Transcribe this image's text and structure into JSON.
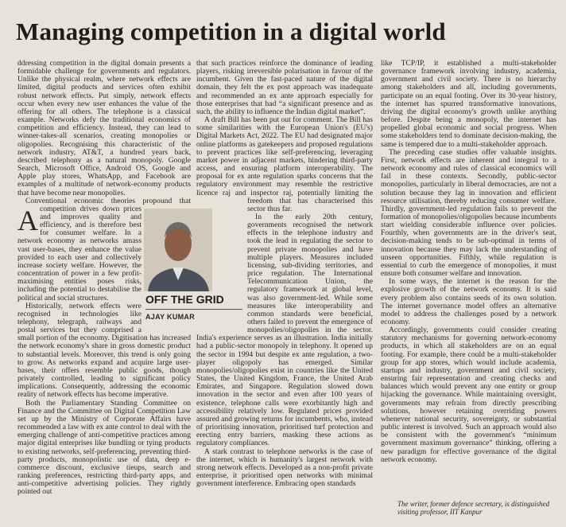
{
  "article": {
    "title": "Managing competition in a digital world",
    "byline": {
      "column": "OFF THE GRID",
      "author": "AJAY KUMAR"
    },
    "columns": [
      [
        "Addressing competition in the digital domain presents a formidable challenge for governments and regulators. Unlike the physical realm, where network effects are limited, digital products and services often exhibit robust network effects. Put simply, network effects occur when every new user enhances the value of the offering for all others. The telephone is a classical example. Networks defy the traditional economics of competition and efficiency. Instead, they can lead to winner-takes-all scenarios, creating monopolies or oligopolies. Recognising this characteristic of the network industry, AT&T, a hundred years back, described telephony as a natural monopoly. Google Search, Microsoft Office, Android OS, Google and Apple play stores, WhatsApp, and Facebook are examples of a multitude of network-economy products that have become near monopolies.",
        "Conventional economic theories propound that competition drives down prices and improves quality and efficiency, and is therefore best for consumer welfare. In a network economy as networks amass vast user-bases, they enhance the value provided to each user and collectively increase society welfare. However, the concentration of power in a few profit-maximising entities poses risks, including the potential to destabilise the political and social structures.",
        "Historically, network effects were recognised in technologies like telephony, telegraph, railways and postal services but they comprised a small portion of the economy. Digitisation has increased the network economy's share in gross domestic product to substantial levels. Moreover, this trend is only going to grow. As networks expand and acquire large user-bases, their offers resemble public goods, though privately controlled, leading to significant policy implications. Consequently, addressing the economic reality of network effects has become imperative.",
        "Both the Parliamentary Standing Committee on Finance and the Committee on Digital Competition Law set up by the Ministry of Corporate Affairs have recommended a law with ex ante control to deal with the emerging challenge of anti-competitive practices among major digital enterprises like bundling or tying products to existing networks, self-preferencing, preventing third-party products, monopolistic use of data, deep e-commerce discount, exclusive tieups, search and ranking preferences, restricting third-party apps, and anti-competitive advertising policies. They rightly pointed out"
      ],
      [
        "that such practices reinforce the dominance of leading players, risking irreversible polarisation in favour of the incumbent. Given the fast-paced nature of the digital domain, they felt the ex post approach was inadequate and recommended an ex ante approach especially for those enterprises that had “a significant presence and as such, the ability to influence the Indian digital market”.",
        "A draft Bill has been put out for comment. The Bill has some similarities with the European Union's (EU's) Digital Markets Act, 2022. The EU had designated major online platforms as gatekeepers and proposed regulations to prevent practices like self-preferencing, leveraging market power in adjacent markets, hindering third-party access, and ensuring platform interoperability. The proposal for ex ante regulation sparks concerns that the regulatory environment may resemble the restrictive licence raj and inspector raj, potentially limiting the freedom that has characterised this sector thus far.",
        "In the early 20th century, governments recognised the network effects in the telephone industry and took the lead in regulating the sector to prevent private monopolies and have multiple players. Measures included licensing, sub-dividing territories, and price regulation. The International Telecommunication Union, the regulatory framework at global level, was also government-led. While some measures like interoperability and common standards were beneficial, others failed to prevent the emergence of monopolies/oligopolies in the sector. India's experience serves as an illustration. India initially had a public-sector monopoly in telephony. It opened up the sector in 1994 but despite ex ante regulation, a two-player oligopoly has emerged. Similar monopolies/oligopolies exist in countries like the United States, the United Kingdom, France, the United Arab Emirates, and Singapore. Regulation slowed down innovation in the sector and even after 100 years of existence, telephone calls were exorbitantly high and accessibility relatively low. Regulated prices provided assured and growing returns for incumbents, who, instead of prioritising innovation, prioritised turf protection and erecting entry barriers, masking these actions as regulatory compliances.",
        "A stark contrast to telephone networks is the case of the internet, which is humanity's largest network with strong network effects. Developed as a non-profit private enterprise, it prioritised open networks with minimal government interference. Embracing open standards"
      ],
      [
        "like TCP/IP, it established a multi-stakeholder governance framework involving industry, academia, government and civil society. There is no hierarchy among stakeholders and all, including governments, participate on an equal footing. Over its 30-year history, the internet has spurred transformative innovations, driving the digital economy's growth unlike anything before. Despite being a monopoly, the internet has propelled global economic and social progress. When some stakeholders tend to dominate decision-making, the same is tempered due to a multi-stakeholder approach.",
        "The preceding case studies offer valuable insights. First, network effects are inherent and integral to a network economy and rules of classical economics will fail in these contexts. Secondly, public-sector monopolies, particularly in liberal democracies, are not a solution because they lag in innovation and efficient resource utilisation, thereby reducing consumer welfare. Thirdly, government-led regulation fails to prevent the formation of monopolies/oligopolies because incumbents start wielding considerable influence over policies. Fourthly, when governments are in the driver's seat, decision-making tends to be sub-optimal in terms of innovation because they may lack the understanding of unseen opportunities. Fifthly, while regulation is essential to curb the emergence of monopolies, it must ensure both consumer welfare and innovation.",
        "In some ways, the internet is the reason for the explosive growth of the network economy. It is said every problem also contains seeds of its own solution. The internet governance model offers an alternative model to address the challenges posed by a network economy.",
        "Accordingly, governments could consider creating statutory mechanisms for governing network-economy products, in which all stakeholders are on an equal footing. For example, there could be a multi-stakeholder group for app stores, which would include academia, startups and industry, government and civil society, ensuring fair representation and creating checks and balances which would prevent any one entity or group hijacking the governance. While maintaining oversight, governments may refrain from directly prescribing solutions, however retaining overriding powers whenever national security, sovereignty, or substantial public interest is involved. Such an approach would also be consistent with the government's “minimum government maximum governance” thinking, offering a new paradigm for effective governance of the digital network economy."
      ]
    ],
    "footnote": "The writer, former defence secretary, is distinguished visiting professor, IIT Kanpur"
  }
}
